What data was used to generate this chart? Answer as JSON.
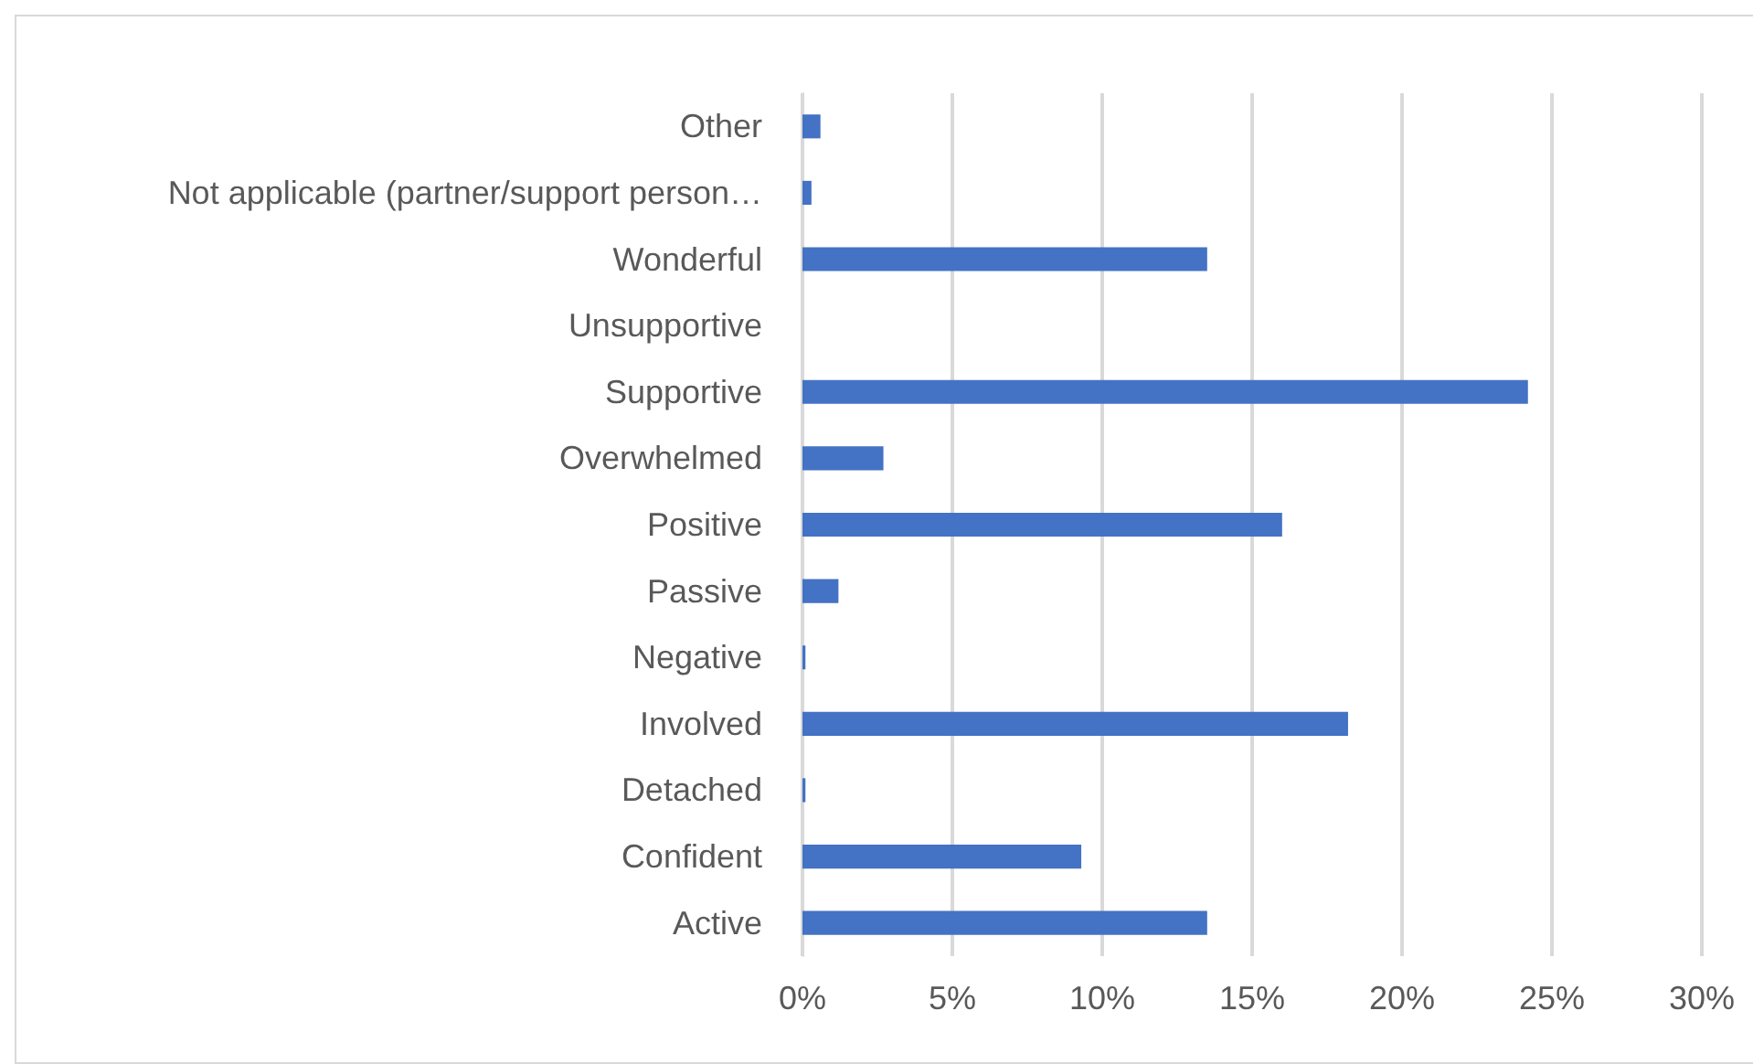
{
  "chart_data": {
    "type": "bar",
    "orientation": "horizontal",
    "categories": [
      "Other",
      "Not applicable (partner/support person…",
      "Wonderful",
      "Unsupportive",
      "Supportive",
      "Overwhelmed",
      "Positive",
      "Passive",
      "Negative",
      "Involved",
      "Detached",
      "Confident",
      "Active"
    ],
    "values": [
      0.6,
      0.3,
      13.5,
      0,
      24.2,
      2.7,
      16.0,
      1.2,
      0.1,
      18.2,
      0.1,
      9.3,
      13.5
    ],
    "color": "#4472c4",
    "xlim": [
      0,
      30
    ],
    "xticks": [
      {
        "value": 0,
        "label": "0%"
      },
      {
        "value": 5,
        "label": "5%"
      },
      {
        "value": 10,
        "label": "10%"
      },
      {
        "value": 15,
        "label": "15%"
      },
      {
        "value": 20,
        "label": "20%"
      },
      {
        "value": 25,
        "label": "25%"
      },
      {
        "value": 30,
        "label": "30%"
      }
    ],
    "grid": "x"
  }
}
